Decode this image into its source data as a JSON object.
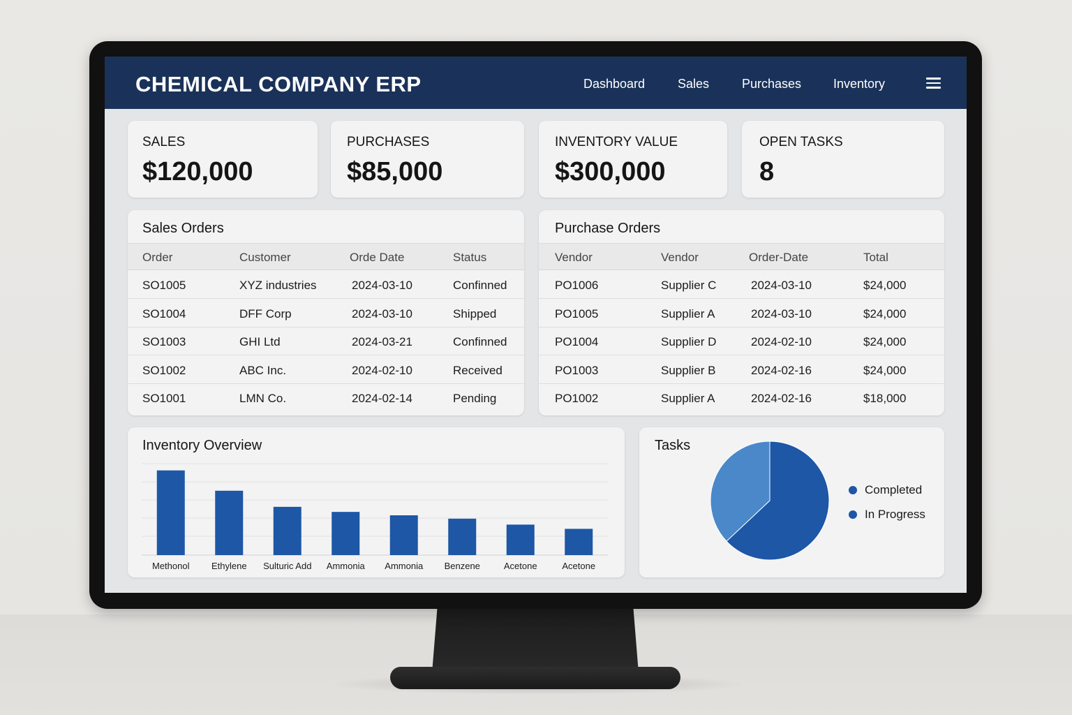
{
  "header": {
    "title": "CHEMICAL COMPANY ERP",
    "nav": [
      "Dashboard",
      "Sales",
      "Purchases",
      "Inventory"
    ],
    "menu_icon": "hamburger-menu-icon"
  },
  "kpis": [
    {
      "label": "SALES",
      "value": "$120,000"
    },
    {
      "label": "PURCHASES",
      "value": "$85,000"
    },
    {
      "label": "INVENTORY VALUE",
      "value": "$300,000"
    },
    {
      "label": "OPEN TASKS",
      "value": "8"
    }
  ],
  "sales_orders": {
    "title": "Sales Orders",
    "columns": [
      "Order",
      "Customer",
      "Orde Date",
      "Status"
    ],
    "rows": [
      [
        "SO1005",
        "XYZ industries",
        "2024-03-10",
        "Confinned"
      ],
      [
        "SO1004",
        "DFF Corp",
        "2024-03-10",
        "Shipped"
      ],
      [
        "SO1003",
        "GHI Ltd",
        "2024-03-21",
        "Confinned"
      ],
      [
        "SO1002",
        "ABC Inc.",
        "2024-02-10",
        "Received"
      ],
      [
        "SO1001",
        "LMN Co.",
        "2024-02-14",
        "Pending"
      ]
    ]
  },
  "purchase_orders": {
    "title": "Purchase Orders",
    "columns": [
      "Vendor",
      "Vendor",
      "Order-Date",
      "Total"
    ],
    "rows": [
      [
        "PO1006",
        "Supplier C",
        "2024-03-10",
        "$24,000"
      ],
      [
        "PO1005",
        "Supplier A",
        "2024-03-10",
        "$24,000"
      ],
      [
        "PO1004",
        "Supplier D",
        "2024-02-10",
        "$24,000"
      ],
      [
        "PO1003",
        "Supplier B",
        "2024-02-16",
        "$24,000"
      ],
      [
        "PO1002",
        "Supplier A",
        "2024-02-16",
        "$18,000"
      ]
    ]
  },
  "inventory_overview": {
    "title": "Inventory Overview",
    "chart_data": {
      "type": "bar",
      "title": "Inventory Overview",
      "categories": [
        "Methonol",
        "Ethylene",
        "Sulturic Add",
        "Ammonia",
        "Ammonia",
        "Benzene",
        "Acetone",
        "Acetone"
      ],
      "values": [
        100,
        76,
        57,
        51,
        47,
        43,
        36,
        31
      ],
      "ylim": [
        0,
        108
      ],
      "grid": true,
      "color": "#1d57a6"
    }
  },
  "tasks": {
    "title": "Tasks",
    "chart_data": {
      "type": "pie",
      "title": "Tasks",
      "labels": [
        "Completed",
        "In Progress"
      ],
      "values": [
        37,
        63
      ],
      "colors": [
        "#4a88ca",
        "#1d57a6"
      ],
      "legend": "right"
    }
  }
}
